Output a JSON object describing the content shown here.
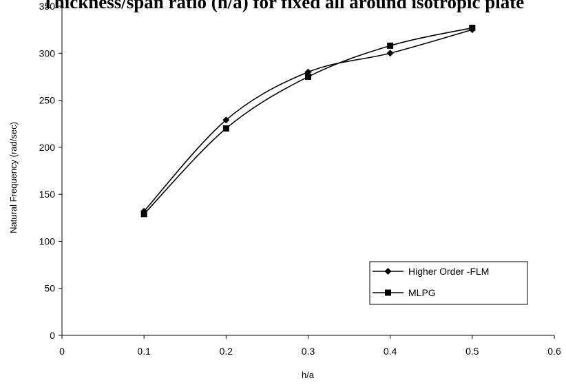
{
  "chart_data": {
    "type": "line",
    "title": "Thickness/span ratio (h/a) for fixed all around isotropic plate",
    "xlabel": "h/a",
    "ylabel": "Natural Frequency (rad/sec)",
    "xlim": [
      0,
      0.6
    ],
    "ylim": [
      0,
      350
    ],
    "xticks": [
      0,
      0.1,
      0.2,
      0.3,
      0.4,
      0.5,
      0.6
    ],
    "yticks": [
      0,
      50,
      100,
      150,
      200,
      250,
      300,
      350
    ],
    "grid": false,
    "legend_position": "bottom-right",
    "series": [
      {
        "name": "Higher Order -FLM",
        "marker": "diamond",
        "color": "#000000",
        "x": [
          0.1,
          0.2,
          0.3,
          0.4,
          0.5
        ],
        "y": [
          132,
          229,
          280,
          300,
          325
        ]
      },
      {
        "name": "MLPG",
        "marker": "square",
        "color": "#000000",
        "x": [
          0.1,
          0.2,
          0.3,
          0.4,
          0.5
        ],
        "y": [
          129,
          220,
          275,
          308,
          327
        ]
      }
    ]
  }
}
